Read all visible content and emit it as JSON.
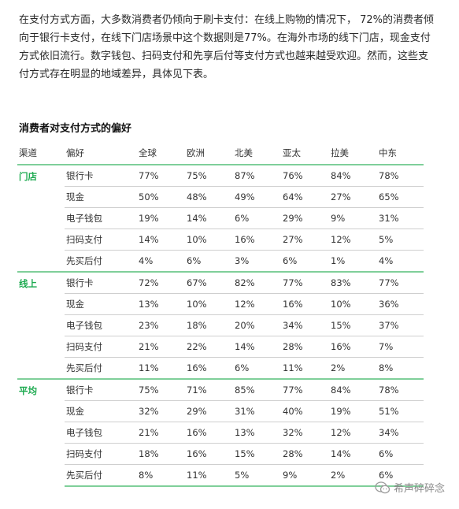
{
  "intro": "在支付方式方面，大多数消费者仍倾向于刷卡支付：在线上购物的情况下， 72%的消费者倾向于银行卡支付，在线下门店场景中这个数据则是77%。在海外市场的线下门店，现金支付方式依旧流行。数字钱包、扫码支付和先享后付等支付方式也越来越受欢迎。然而，这些支付方式存在明显的地域差异，具体见下表。",
  "table": {
    "title": "消费者对支付方式的偏好",
    "headers": [
      "渠道",
      "偏好",
      "全球",
      "欧洲",
      "北美",
      "亚太",
      "拉美",
      "中东"
    ],
    "groups": [
      {
        "channel": "门店",
        "rows": [
          {
            "pref": "银行卡",
            "values": [
              "77%",
              "75%",
              "87%",
              "76%",
              "84%",
              "78%"
            ]
          },
          {
            "pref": "现金",
            "values": [
              "50%",
              "48%",
              "49%",
              "64%",
              "27%",
              "65%"
            ]
          },
          {
            "pref": "电子钱包",
            "values": [
              "19%",
              "14%",
              "6%",
              "29%",
              "9%",
              "31%"
            ]
          },
          {
            "pref": "扫码支付",
            "values": [
              "14%",
              "10%",
              "16%",
              "27%",
              "12%",
              "5%"
            ]
          },
          {
            "pref": "先买后付",
            "values": [
              "4%",
              "6%",
              "3%",
              "6%",
              "1%",
              "4%"
            ]
          }
        ]
      },
      {
        "channel": "线上",
        "rows": [
          {
            "pref": "银行卡",
            "values": [
              "72%",
              "67%",
              "82%",
              "77%",
              "83%",
              "77%"
            ]
          },
          {
            "pref": "现金",
            "values": [
              "13%",
              "10%",
              "12%",
              "16%",
              "10%",
              "36%"
            ]
          },
          {
            "pref": "电子钱包",
            "values": [
              "23%",
              "18%",
              "20%",
              "34%",
              "15%",
              "37%"
            ]
          },
          {
            "pref": "扫码支付",
            "values": [
              "21%",
              "22%",
              "14%",
              "28%",
              "16%",
              "7%"
            ]
          },
          {
            "pref": "先买后付",
            "values": [
              "11%",
              "16%",
              "6%",
              "11%",
              "2%",
              "8%"
            ]
          }
        ]
      },
      {
        "channel": "平均",
        "rows": [
          {
            "pref": "银行卡",
            "values": [
              "75%",
              "71%",
              "85%",
              "77%",
              "84%",
              "78%"
            ]
          },
          {
            "pref": "现金",
            "values": [
              "32%",
              "29%",
              "31%",
              "40%",
              "19%",
              "51%"
            ]
          },
          {
            "pref": "电子钱包",
            "values": [
              "21%",
              "16%",
              "13%",
              "32%",
              "12%",
              "34%"
            ]
          },
          {
            "pref": "扫码支付",
            "values": [
              "18%",
              "16%",
              "15%",
              "28%",
              "14%",
              "6%"
            ]
          },
          {
            "pref": "先买后付",
            "values": [
              "8%",
              "11%",
              "5%",
              "9%",
              "2%",
              "6%"
            ]
          }
        ]
      }
    ]
  },
  "watermark": {
    "text": "希声碎碎念",
    "icon": "wechat-icon"
  }
}
